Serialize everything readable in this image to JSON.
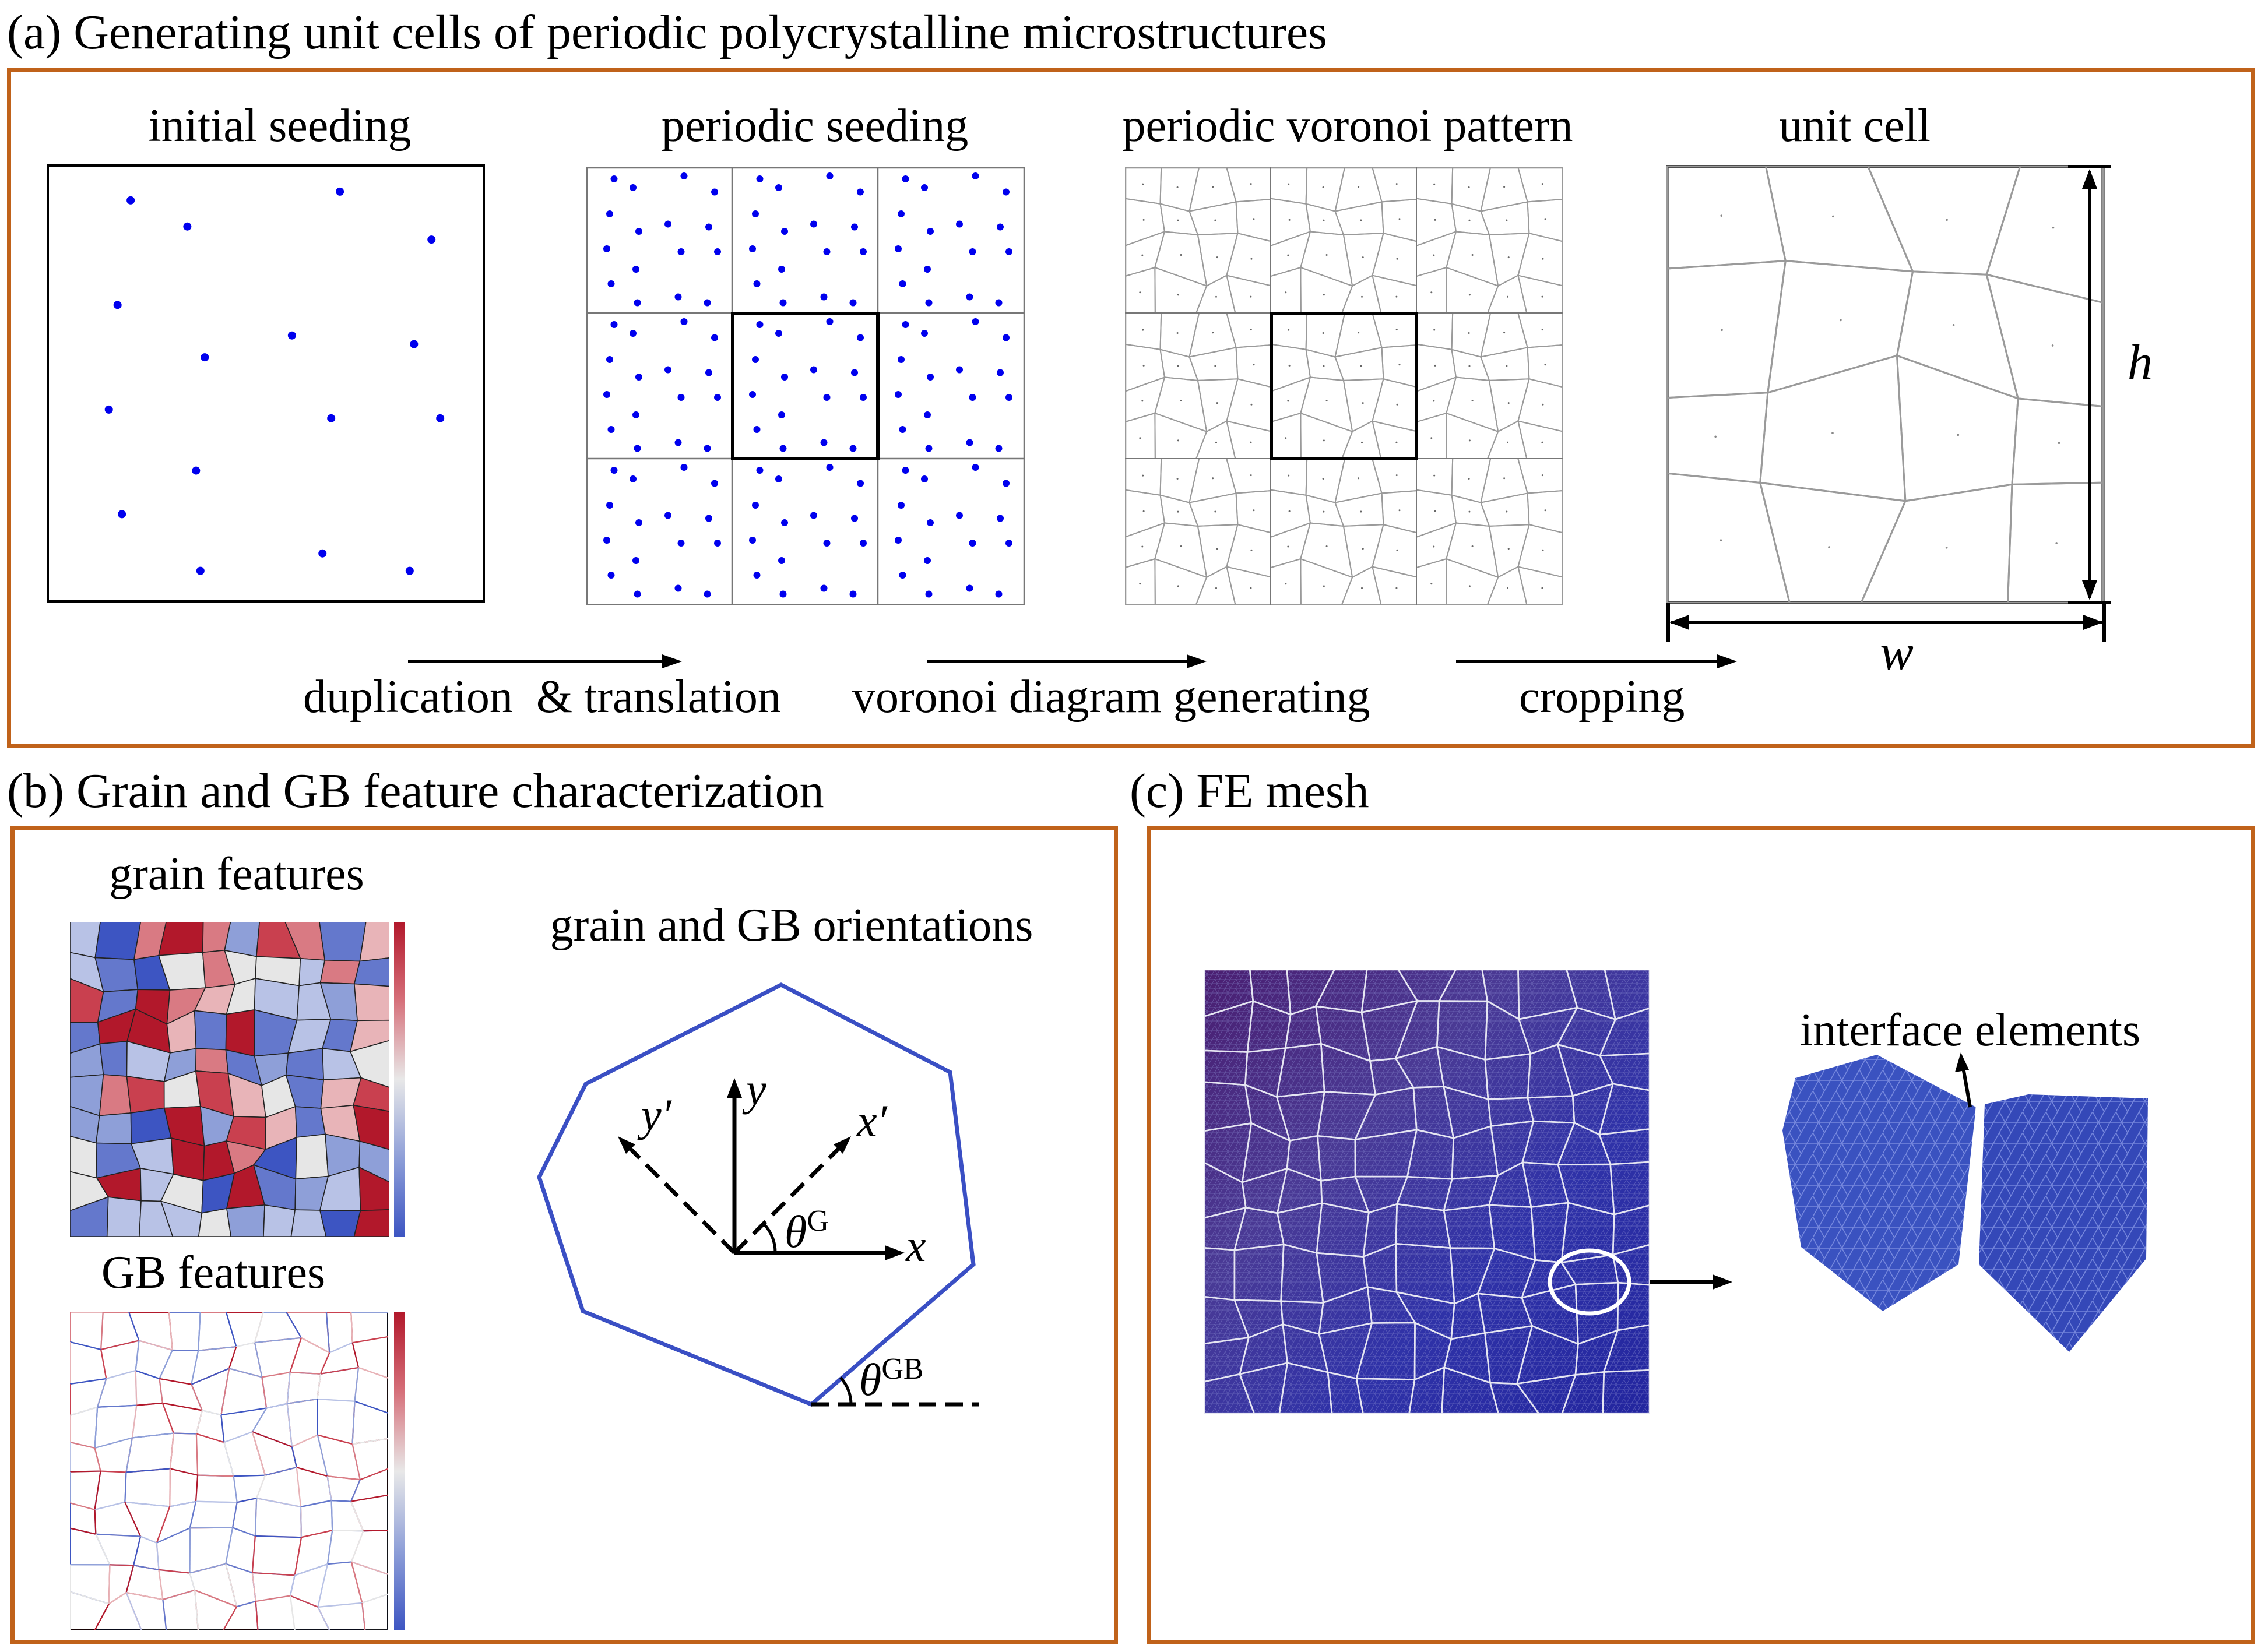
{
  "panel_a": {
    "title": "(a) Generating unit cells of periodic polycrystalline microstructures",
    "steps": [
      "initial seeding",
      "periodic seeding",
      "periodic voronoi pattern",
      "unit cell"
    ],
    "arrows": [
      "duplication  & translation",
      "voronoi diagram generating",
      "cropping"
    ],
    "dim_h": "h",
    "dim_w": "w"
  },
  "panel_b": {
    "title": "(b) Grain and GB feature characterization",
    "grain_label": "grain features",
    "gb_label": "GB features",
    "orient_label": "grain and GB orientations",
    "axis_x": "x",
    "axis_y": "y",
    "axis_xp": "x′",
    "axis_yp": "y′",
    "theta": "θ",
    "theta_g_sup": "G",
    "theta_gb_sup": "GB"
  },
  "panel_c": {
    "title": "(c) FE mesh",
    "interface_label": "interface elements"
  },
  "colors": {
    "frame": "#c0621a",
    "seed": "#0000ee",
    "grain_edge": "#9a9a9a",
    "hex_edge": "#3a4fc4",
    "mesh": "#3547b0",
    "cmap_high": "#b2182b",
    "cmap_low": "#4a64c8"
  }
}
